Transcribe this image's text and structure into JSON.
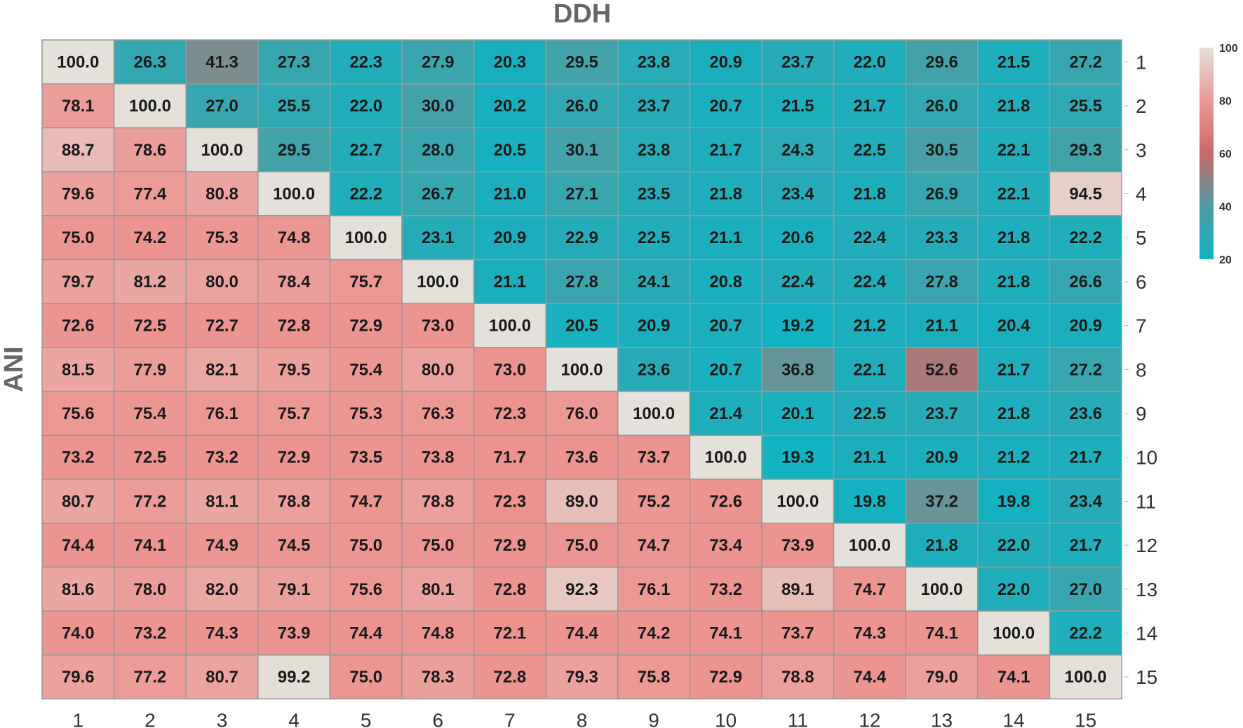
{
  "chart_data": {
    "type": "heatmap",
    "title": "DDH",
    "ylabel": "ANI",
    "x_categories": [
      "1",
      "2",
      "3",
      "4",
      "5",
      "6",
      "7",
      "8",
      "9",
      "10",
      "11",
      "12",
      "13",
      "14",
      "15"
    ],
    "y_categories": [
      "1",
      "2",
      "3",
      "4",
      "5",
      "6",
      "7",
      "8",
      "9",
      "10",
      "11",
      "12",
      "13",
      "14",
      "15"
    ],
    "values": [
      [
        100.0,
        26.3,
        41.3,
        27.3,
        22.3,
        27.9,
        20.3,
        29.5,
        23.8,
        20.9,
        23.7,
        22.0,
        29.6,
        21.5,
        27.2
      ],
      [
        78.1,
        100.0,
        27.0,
        25.5,
        22.0,
        30.0,
        20.2,
        26.0,
        23.7,
        20.7,
        21.5,
        21.7,
        26.0,
        21.8,
        25.5
      ],
      [
        88.7,
        78.6,
        100.0,
        29.5,
        22.7,
        28.0,
        20.5,
        30.1,
        23.8,
        21.7,
        24.3,
        22.5,
        30.5,
        22.1,
        29.3
      ],
      [
        79.6,
        77.4,
        80.8,
        100.0,
        22.2,
        26.7,
        21.0,
        27.1,
        23.5,
        21.8,
        23.4,
        21.8,
        26.9,
        22.1,
        94.5
      ],
      [
        75.0,
        74.2,
        75.3,
        74.8,
        100.0,
        23.1,
        20.9,
        22.9,
        22.5,
        21.1,
        20.6,
        22.4,
        23.3,
        21.8,
        22.2
      ],
      [
        79.7,
        81.2,
        80.0,
        78.4,
        75.7,
        100.0,
        21.1,
        27.8,
        24.1,
        20.8,
        22.4,
        22.4,
        27.8,
        21.8,
        26.6
      ],
      [
        72.6,
        72.5,
        72.7,
        72.8,
        72.9,
        73.0,
        100.0,
        20.5,
        20.9,
        20.7,
        19.2,
        21.2,
        21.1,
        20.4,
        20.9
      ],
      [
        81.5,
        77.9,
        82.1,
        79.5,
        75.4,
        80.0,
        73.0,
        100.0,
        23.6,
        20.7,
        36.8,
        22.1,
        52.6,
        21.7,
        27.2
      ],
      [
        75.6,
        75.4,
        76.1,
        75.7,
        75.3,
        76.3,
        72.3,
        76.0,
        100.0,
        21.4,
        20.1,
        22.5,
        23.7,
        21.8,
        23.6
      ],
      [
        73.2,
        72.5,
        73.2,
        72.9,
        73.5,
        73.8,
        71.7,
        73.6,
        73.7,
        100.0,
        19.3,
        21.1,
        20.9,
        21.2,
        21.7
      ],
      [
        80.7,
        77.2,
        81.1,
        78.8,
        74.7,
        78.8,
        72.3,
        89.0,
        75.2,
        72.6,
        100.0,
        19.8,
        37.2,
        19.8,
        23.4
      ],
      [
        74.4,
        74.1,
        74.9,
        74.5,
        75.0,
        75.0,
        72.9,
        75.0,
        74.7,
        73.4,
        73.9,
        100.0,
        21.8,
        22.0,
        21.7
      ],
      [
        81.6,
        78.0,
        82.0,
        79.1,
        75.6,
        80.1,
        72.8,
        92.3,
        76.1,
        73.2,
        89.1,
        74.7,
        100.0,
        22.0,
        27.0
      ],
      [
        74.0,
        73.2,
        74.3,
        73.9,
        74.4,
        74.8,
        72.1,
        74.4,
        74.2,
        74.1,
        73.7,
        74.3,
        74.1,
        100.0,
        22.2
      ],
      [
        79.6,
        77.2,
        80.7,
        99.2,
        75.0,
        78.3,
        72.8,
        79.3,
        75.8,
        72.9,
        78.8,
        74.4,
        79.0,
        74.1,
        100.0
      ]
    ],
    "colorbar": {
      "min": 20,
      "max": 100,
      "ticks": [
        "100",
        "80",
        "60",
        "40",
        "20"
      ],
      "colors": {
        "low": "#12b2c2",
        "mid": "#e36f6f",
        "high": "#e3e1d9",
        "midgrey": "#7f8c8d"
      }
    }
  }
}
